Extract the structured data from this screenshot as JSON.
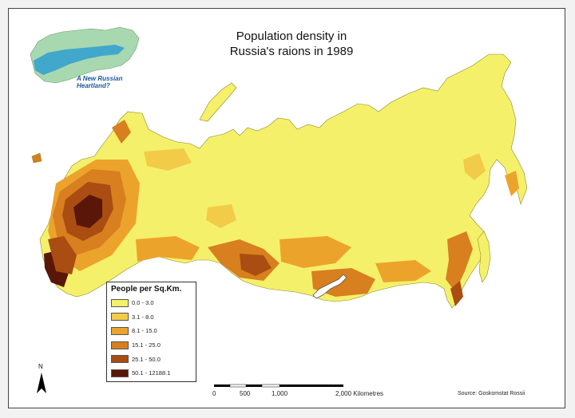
{
  "map": {
    "title_line1": "Population density in",
    "title_line2": "Russia's raions in 1989",
    "source": "Source: Goskomstat Rossii",
    "north_label": "N"
  },
  "inset": {
    "text_line1": "A New Russian",
    "text_line2": "Heartland?"
  },
  "legend": {
    "title": "People per Sq.Km.",
    "items": [
      {
        "label": "0.0 - 3.0",
        "color": "#f5f06a"
      },
      {
        "label": "3.1 - 8.0",
        "color": "#f2cc48"
      },
      {
        "label": "8.1 - 15.0",
        "color": "#eca32c"
      },
      {
        "label": "15.1 - 25.0",
        "color": "#d87f1f"
      },
      {
        "label": "25.1 - 50.0",
        "color": "#a94d12"
      },
      {
        "label": "50.1 - 12188.1",
        "color": "#5a1608"
      }
    ]
  },
  "scale_bar": {
    "labels": [
      "0",
      "500",
      "1,000",
      "2,000 Kilometres"
    ]
  }
}
